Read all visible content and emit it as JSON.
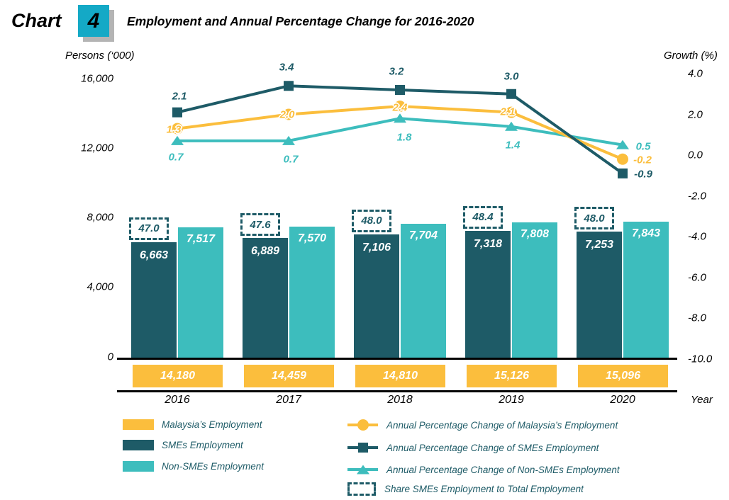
{
  "header": {
    "chart_label": "Chart",
    "chart_number": "4",
    "title": "Employment and Annual Percentage Change for 2016-2020",
    "number_box_color": "#14A9C6"
  },
  "axes": {
    "left_title": "Persons (‘000)",
    "right_title": "Growth (%)",
    "x_title": "Year",
    "left_ticks": [
      {
        "label": "16,000",
        "value": 16000
      },
      {
        "label": "12,000",
        "value": 12000
      },
      {
        "label": "8,000",
        "value": 8000
      },
      {
        "label": "4,000",
        "value": 4000
      },
      {
        "label": "0",
        "value": 0
      }
    ],
    "right_ticks": [
      {
        "label": "4.0",
        "value": 4
      },
      {
        "label": "2.0",
        "value": 2
      },
      {
        "label": "0.0",
        "value": 0
      },
      {
        "label": "-2.0",
        "value": -2
      },
      {
        "label": "-4.0",
        "value": -4
      },
      {
        "label": "-6.0",
        "value": -6
      },
      {
        "label": "-8.0",
        "value": -8
      },
      {
        "label": "-10.0",
        "value": -10
      }
    ]
  },
  "chart_data": {
    "type": "combo bar + line",
    "categories": [
      "2016",
      "2017",
      "2018",
      "2019",
      "2020"
    ],
    "left_axis_range": [
      0,
      16000
    ],
    "right_axis_range": [
      -10,
      4
    ],
    "legend_position": "bottom",
    "grid": false,
    "bar_series": [
      {
        "key": "smes",
        "name": "SMEs Employment",
        "color": "#1E5B67",
        "values": [
          6663,
          6889,
          7106,
          7318,
          7253
        ],
        "labels": [
          "6,663",
          "6,889",
          "7,106",
          "7,318",
          "7,253"
        ]
      },
      {
        "key": "nonsmes",
        "name": "Non-SMEs Employment",
        "color": "#3DBDBD",
        "values": [
          7517,
          7570,
          7704,
          7808,
          7843
        ],
        "labels": [
          "7,517",
          "7,570",
          "7,704",
          "7,808",
          "7,843"
        ]
      }
    ],
    "total_series": {
      "key": "malaysia",
      "name": "Malaysia’s Employment",
      "color": "#FBBE3D",
      "values": [
        14180,
        14459,
        14810,
        15126,
        15096
      ],
      "labels": [
        "14,180",
        "14,459",
        "14,810",
        "15,126",
        "15,096"
      ]
    },
    "share_series": {
      "name": "Share SMEs Employment to Total Employment",
      "values": [
        47.0,
        47.6,
        48.0,
        48.4,
        48.0
      ],
      "labels": [
        "47.0",
        "47.6",
        "48.0",
        "48.4",
        "48.0"
      ]
    },
    "line_series": [
      {
        "key": "malaysia",
        "name": "Annual Percentage Change of Malaysia’s Employment",
        "color": "#FBBE3D",
        "marker": "circle",
        "values": [
          1.3,
          2.0,
          2.4,
          2.1,
          -0.2
        ],
        "labels": [
          "1.3",
          "2.0",
          "2.4",
          "2.1",
          "-0.2"
        ]
      },
      {
        "key": "smes",
        "name": "Annual Percentage Change of SMEs Employment",
        "color": "#1E5B67",
        "marker": "square",
        "values": [
          2.1,
          3.4,
          3.2,
          3.0,
          -0.9
        ],
        "labels": [
          "2.1",
          "3.4",
          "3.2",
          "3.0",
          "-0.9"
        ]
      },
      {
        "key": "nonsmes",
        "name": "Annual Percentage Change of Non-SMEs Employment",
        "color": "#3DBDBD",
        "marker": "triangle",
        "values": [
          0.7,
          0.7,
          1.8,
          1.4,
          0.5
        ],
        "labels": [
          "0.7",
          "0.7",
          "1.8",
          "1.4",
          "0.5"
        ]
      }
    ]
  },
  "legend": {
    "left": [
      {
        "label": "Malaysia’s Employment",
        "swatch": "#FBBE3D"
      },
      {
        "label": "SMEs Employment",
        "swatch": "#1E5B67"
      },
      {
        "label": "Non-SMEs Employment",
        "swatch": "#3DBDBD"
      }
    ],
    "right": [
      {
        "label": "Annual Percentage Change of Malaysia’s Employment",
        "marker": "circle",
        "color": "#FBBE3D"
      },
      {
        "label": "Annual Percentage Change of SMEs Employment",
        "marker": "square",
        "color": "#1E5B67"
      },
      {
        "label": "Annual Percentage Change of Non-SMEs Employment",
        "marker": "triangle",
        "color": "#3DBDBD"
      },
      {
        "label": "Share SMEs Employment to Total Employment",
        "marker": "dashed-box",
        "color": "#1E5B67"
      }
    ]
  }
}
